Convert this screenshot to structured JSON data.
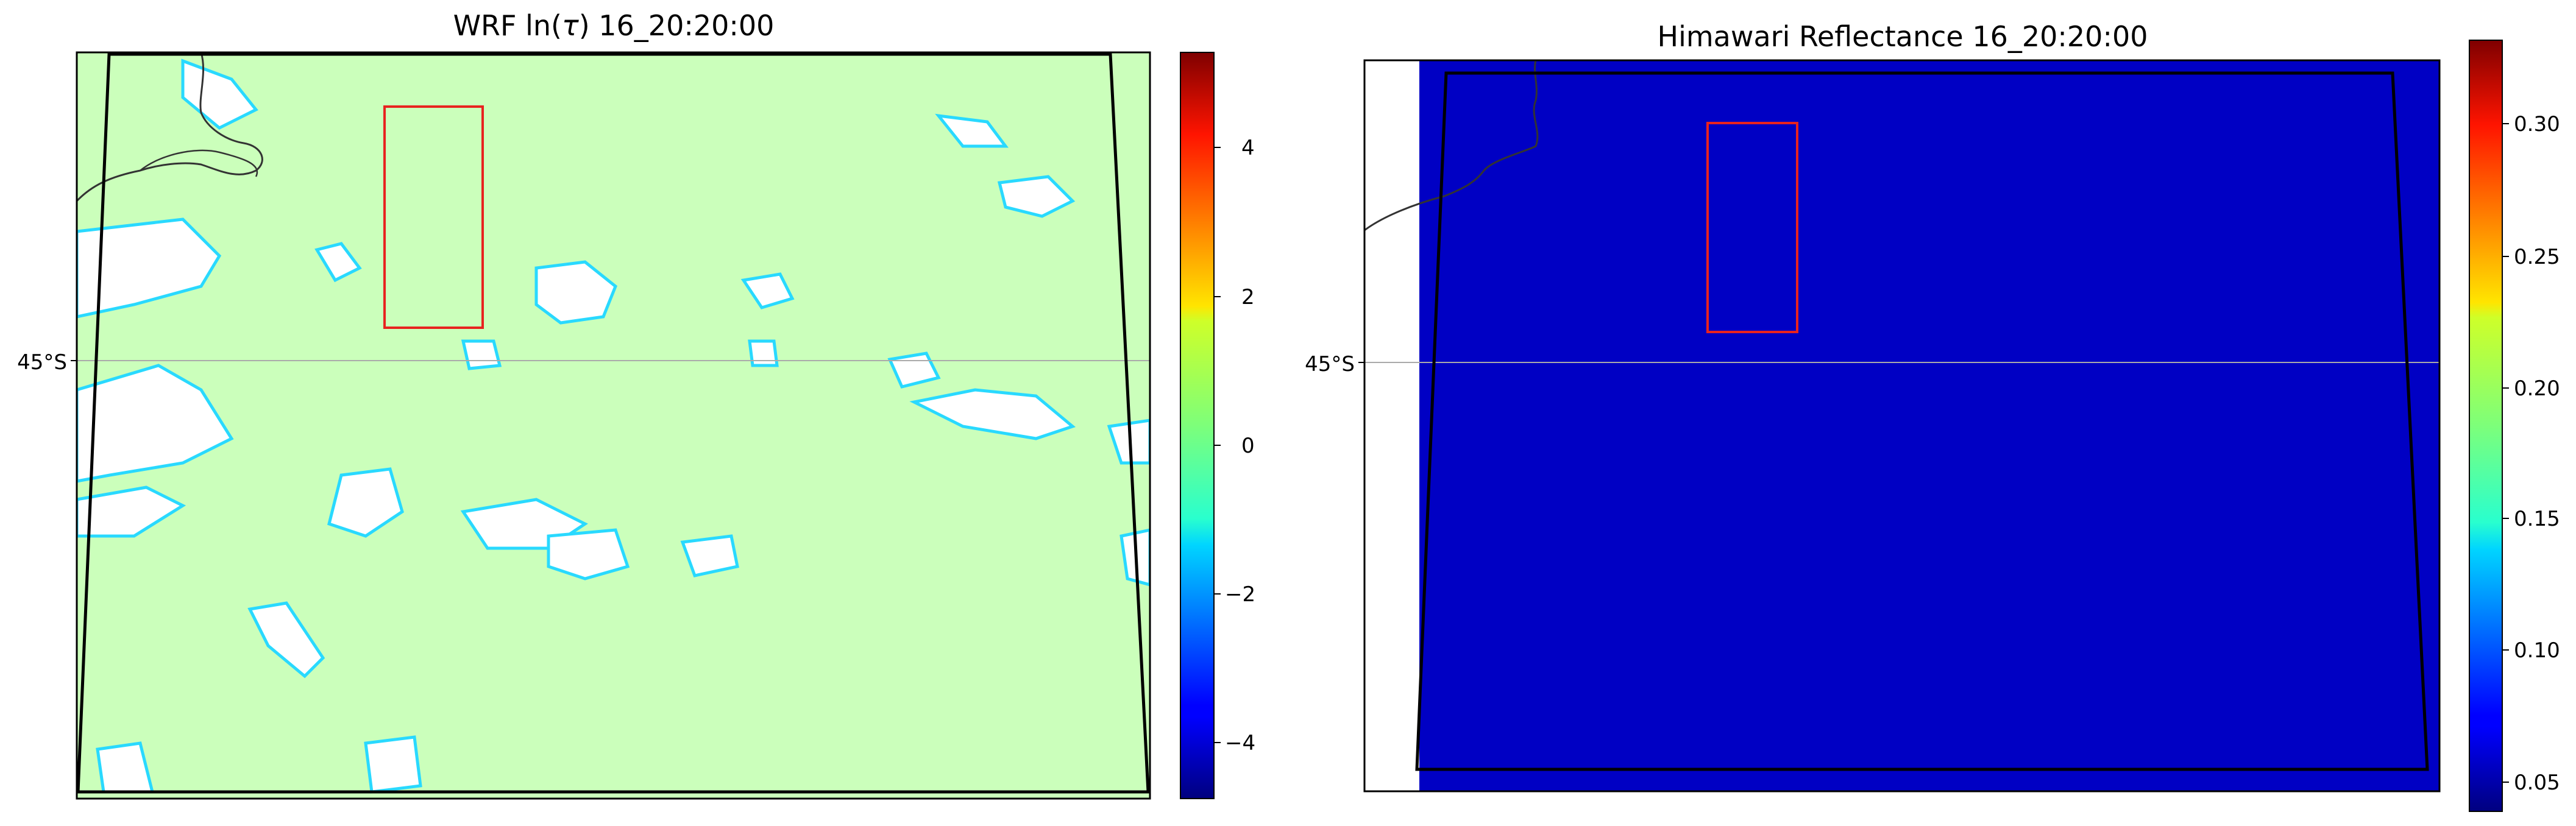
{
  "figure": {
    "panels": [
      {
        "title_prefix": "WRF ln(",
        "title_symbol": "τ",
        "title_suffix": ") 16_20:20:00",
        "lat_label": "45°S",
        "colorbar_ticks": [
          "4",
          "2",
          "0",
          "−2",
          "−4"
        ]
      },
      {
        "title": "Himawari Reflectance 16_20:20:00",
        "lat_label": "45°S",
        "colorbar_ticks": [
          "0.30",
          "0.25",
          "0.20",
          "0.15",
          "0.10",
          "0.05"
        ]
      }
    ]
  },
  "chart_data": [
    {
      "type": "heatmap",
      "title": "WRF ln(τ) 16_20:20:00",
      "colormap": "jet",
      "colorbar": {
        "ticks": [
          4,
          2,
          0,
          -2,
          -4
        ],
        "range": [
          -4.9,
          5.2
        ]
      },
      "y_tick_labels": [
        "45°S"
      ],
      "grid": true,
      "domain_outline": "black",
      "highlight_box": "red"
    },
    {
      "type": "heatmap",
      "title": "Himawari Reflectance 16_20:20:00",
      "colormap": "jet",
      "colorbar": {
        "ticks": [
          0.3,
          0.25,
          0.2,
          0.15,
          0.1,
          0.05
        ],
        "range": [
          0.04,
          0.33
        ]
      },
      "y_tick_labels": [
        "45°S"
      ],
      "grid": true,
      "domain_outline": "black",
      "highlight_box": "red"
    }
  ]
}
